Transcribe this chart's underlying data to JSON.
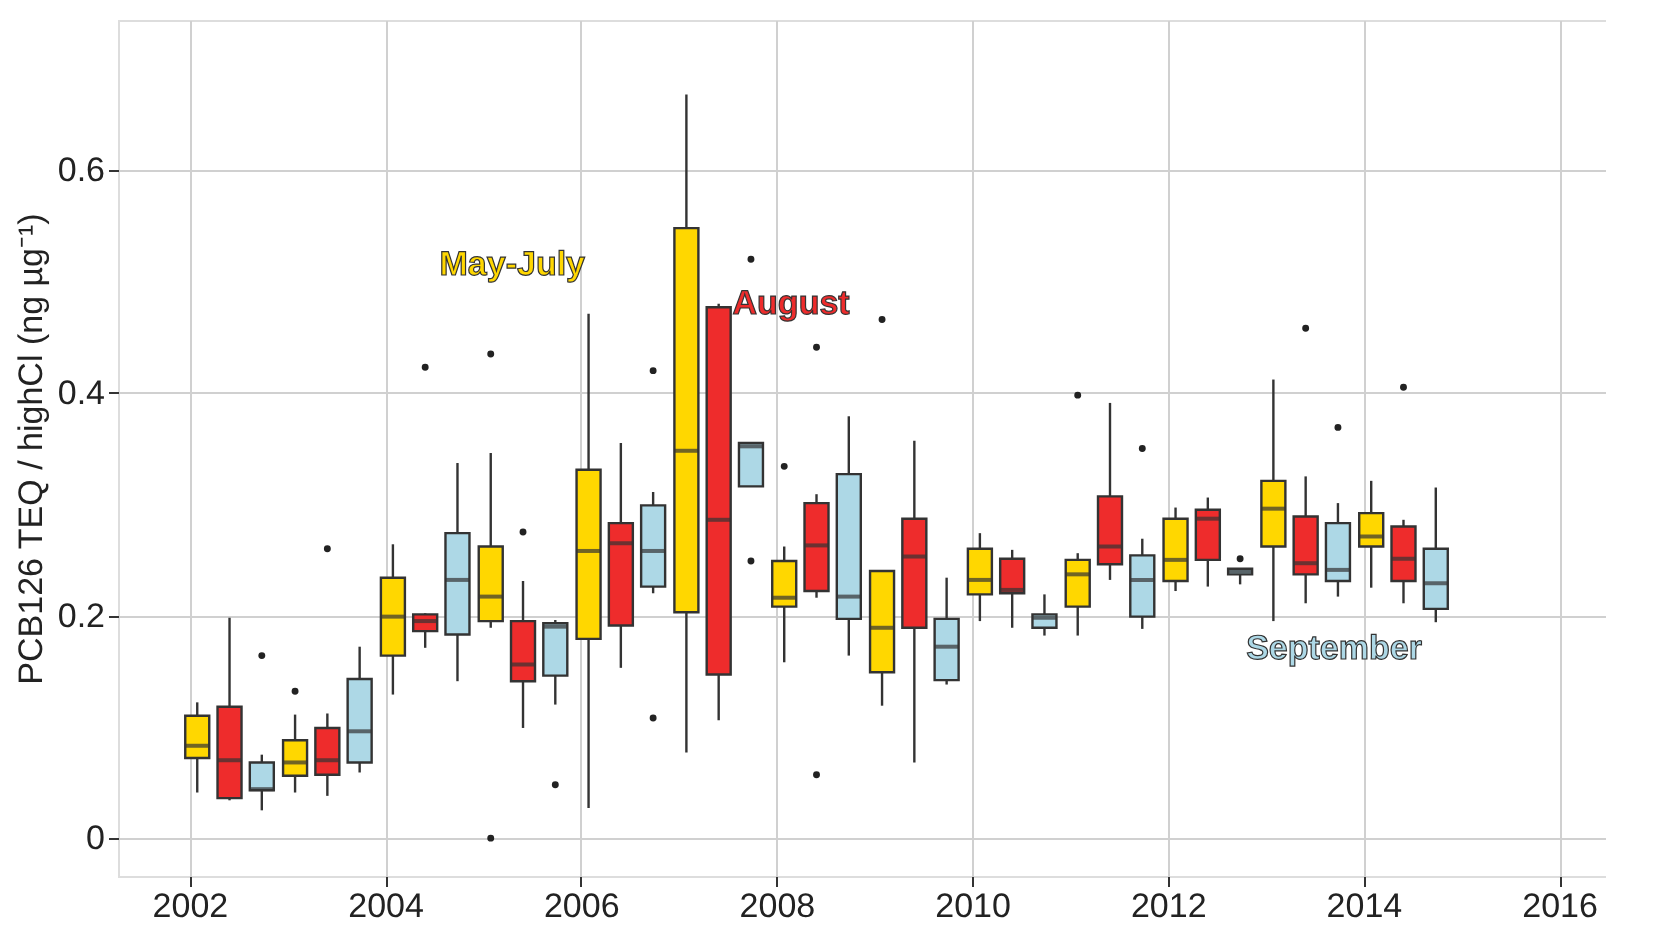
{
  "chart_data": {
    "type": "box",
    "ylabel": "PCB126 TEQ / highCl (ng µg⁻¹)",
    "xlim": [
      2001.27,
      2016.48
    ],
    "xticks": [
      2002,
      2004,
      2006,
      2008,
      2010,
      2012,
      2014,
      2016
    ],
    "ylim": [
      -0.034,
      0.735
    ],
    "yticks": [
      0,
      0.2,
      0.4,
      0.6
    ],
    "grid": true,
    "series": [
      {
        "name": "May-July",
        "color": "#ffd700",
        "x": [
          2002.08,
          2003.08,
          2004.08,
          2005.08,
          2006.08,
          2007.08,
          2008.08,
          2009.08,
          2010.08,
          2011.08,
          2012.08,
          2013.08,
          2014.08
        ],
        "boxes": [
          {
            "low": 0.041,
            "q1": 0.072,
            "median": 0.083,
            "q3": 0.11,
            "high": 0.122
          },
          {
            "low": 0.041,
            "q1": 0.056,
            "median": 0.068,
            "q3": 0.088,
            "high": 0.111,
            "outliers": [
              0.132
            ]
          },
          {
            "low": 0.129,
            "q1": 0.164,
            "median": 0.199,
            "q3": 0.234,
            "high": 0.264
          },
          {
            "low": 0.189,
            "q1": 0.195,
            "median": 0.217,
            "q3": 0.262,
            "high": 0.346,
            "outliers": [
              0.435,
              0.0
            ]
          },
          {
            "low": 0.027,
            "q1": 0.179,
            "median": 0.258,
            "q3": 0.331,
            "high": 0.471
          },
          {
            "low": 0.077,
            "q1": 0.203,
            "median": 0.348,
            "q3": 0.548,
            "high": 0.668
          },
          {
            "low": 0.158,
            "q1": 0.208,
            "median": 0.216,
            "q3": 0.249,
            "high": 0.262,
            "outliers": [
              0.334
            ]
          },
          {
            "low": 0.119,
            "q1": 0.149,
            "median": 0.189,
            "q3": 0.24,
            "high": 0.24,
            "outliers": [
              0.466
            ]
          },
          {
            "low": 0.195,
            "q1": 0.219,
            "median": 0.232,
            "q3": 0.26,
            "high": 0.274
          },
          {
            "low": 0.182,
            "q1": 0.208,
            "median": 0.237,
            "q3": 0.25,
            "high": 0.256,
            "outliers": [
              0.398
            ]
          },
          {
            "low": 0.222,
            "q1": 0.231,
            "median": 0.25,
            "q3": 0.287,
            "high": 0.297
          },
          {
            "low": 0.195,
            "q1": 0.262,
            "median": 0.296,
            "q3": 0.321,
            "high": 0.412
          },
          {
            "low": 0.225,
            "q1": 0.262,
            "median": 0.271,
            "q3": 0.292,
            "high": 0.321
          }
        ]
      },
      {
        "name": "August",
        "color": "#ee2c2c",
        "x": [
          2002.41,
          2003.41,
          2004.41,
          2005.41,
          2006.41,
          2007.41,
          2008.41,
          2009.41,
          2010.41,
          2011.41,
          2012.41,
          2013.41,
          2014.41
        ],
        "boxes": [
          {
            "low": 0.034,
            "q1": 0.036,
            "median": 0.07,
            "q3": 0.118,
            "high": 0.198
          },
          {
            "low": 0.038,
            "q1": 0.057,
            "median": 0.07,
            "q3": 0.099,
            "high": 0.112,
            "outliers": [
              0.26
            ]
          },
          {
            "low": 0.171,
            "q1": 0.186,
            "median": 0.195,
            "q3": 0.201,
            "high": 0.202,
            "outliers": [
              0.423
            ]
          },
          {
            "low": 0.099,
            "q1": 0.141,
            "median": 0.156,
            "q3": 0.195,
            "high": 0.231,
            "outliers": [
              0.275
            ]
          },
          {
            "low": 0.153,
            "q1": 0.191,
            "median": 0.265,
            "q3": 0.283,
            "high": 0.355
          },
          {
            "low": 0.106,
            "q1": 0.147,
            "median": 0.286,
            "q3": 0.477,
            "high": 0.48
          },
          {
            "low": 0.216,
            "q1": 0.222,
            "median": 0.263,
            "q3": 0.301,
            "high": 0.309,
            "outliers": [
              0.441,
              0.057
            ]
          },
          {
            "low": 0.068,
            "q1": 0.189,
            "median": 0.253,
            "q3": 0.287,
            "high": 0.357
          },
          {
            "low": 0.189,
            "q1": 0.22,
            "median": 0.223,
            "q3": 0.251,
            "high": 0.259
          },
          {
            "low": 0.232,
            "q1": 0.246,
            "median": 0.262,
            "q3": 0.307,
            "high": 0.391
          },
          {
            "low": 0.226,
            "q1": 0.25,
            "median": 0.287,
            "q3": 0.295,
            "high": 0.306
          },
          {
            "low": 0.211,
            "q1": 0.237,
            "median": 0.247,
            "q3": 0.289,
            "high": 0.325,
            "outliers": [
              0.458
            ]
          },
          {
            "low": 0.211,
            "q1": 0.231,
            "median": 0.251,
            "q3": 0.28,
            "high": 0.286,
            "outliers": [
              0.405
            ]
          }
        ]
      },
      {
        "name": "September",
        "color": "#add8e6",
        "x": [
          2002.74,
          2003.74,
          2004.74,
          2005.74,
          2006.74,
          2007.74,
          2008.74,
          2009.74,
          2010.74,
          2011.74,
          2012.74,
          2013.74,
          2014.74
        ],
        "boxes": [
          {
            "low": 0.025,
            "q1": 0.043,
            "median": 0.044,
            "q3": 0.068,
            "high": 0.075,
            "outliers": [
              0.164
            ]
          },
          {
            "low": 0.059,
            "q1": 0.068,
            "median": 0.096,
            "q3": 0.143,
            "high": 0.172
          },
          {
            "low": 0.141,
            "q1": 0.183,
            "median": 0.232,
            "q3": 0.274,
            "high": 0.337
          },
          {
            "low": 0.12,
            "q1": 0.146,
            "median": 0.19,
            "q3": 0.193,
            "high": 0.196,
            "outliers": [
              0.048
            ]
          },
          {
            "low": 0.22,
            "q1": 0.226,
            "median": 0.258,
            "q3": 0.299,
            "high": 0.311,
            "outliers": [
              0.42,
              0.108
            ]
          },
          {
            "low": 0.316,
            "q1": 0.316,
            "median": 0.352,
            "q3": 0.355,
            "high": 0.355,
            "outliers": [
              0.52,
              0.249
            ]
          },
          {
            "low": 0.164,
            "q1": 0.197,
            "median": 0.217,
            "q3": 0.327,
            "high": 0.379
          },
          {
            "low": 0.138,
            "q1": 0.142,
            "median": 0.172,
            "q3": 0.197,
            "high": 0.234
          },
          {
            "low": 0.182,
            "q1": 0.189,
            "median": 0.198,
            "q3": 0.201,
            "high": 0.219
          },
          {
            "low": 0.188,
            "q1": 0.199,
            "median": 0.232,
            "q3": 0.254,
            "high": 0.269,
            "outliers": [
              0.35
            ]
          },
          {
            "low": 0.228,
            "q1": 0.237,
            "median": 0.24,
            "q3": 0.242,
            "high": 0.242,
            "outliers": [
              0.251
            ]
          },
          {
            "low": 0.217,
            "q1": 0.231,
            "median": 0.241,
            "q3": 0.283,
            "high": 0.301,
            "outliers": [
              0.369
            ]
          },
          {
            "low": 0.194,
            "q1": 0.206,
            "median": 0.229,
            "q3": 0.26,
            "high": 0.315
          }
        ]
      }
    ]
  }
}
